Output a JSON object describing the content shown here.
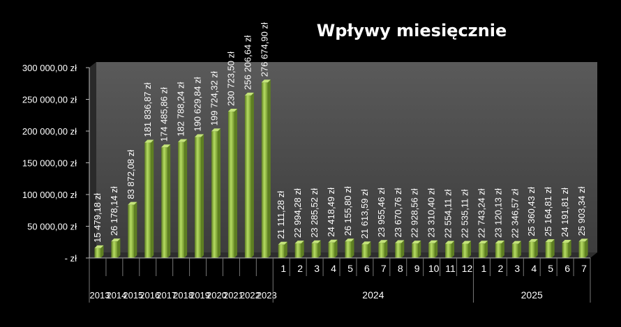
{
  "chart_data": {
    "type": "bar",
    "title": "Wpływy miesięcznie",
    "xlabel": "",
    "ylabel": "",
    "ylim": [
      0,
      300000
    ],
    "y_ticks": [
      "-  zł",
      "50 000,00 zł",
      "100 000,00 zł",
      "150 000,00 zł",
      "200 000,00 zł",
      "250 000,00 zł",
      "300 000,00 zł"
    ],
    "grid": false,
    "colors": {
      "bar": "#8cb83c",
      "bar_light": "#c4e47a",
      "bar_dark": "#5e7f22",
      "plot_back": "#4a4a4a",
      "plot_floor": "#2e2e2e"
    },
    "categories": [
      "2013",
      "2014",
      "2015",
      "2016",
      "2017",
      "2018",
      "2019",
      "2020",
      "2021",
      "2022",
      "2023",
      "1",
      "2",
      "3",
      "4",
      "5",
      "6",
      "7",
      "8",
      "9",
      "10",
      "11",
      "12",
      "1",
      "2",
      "3",
      "4",
      "5",
      "6",
      "7"
    ],
    "groups": [
      {
        "label": "2024",
        "start": 11,
        "count": 12
      },
      {
        "label": "2025",
        "start": 23,
        "count": 7
      }
    ],
    "values": [
      15479.18,
      26178.14,
      83872.08,
      181836.87,
      174485.86,
      182788.24,
      190629.84,
      199724.32,
      230723.5,
      256206.64,
      276674.9,
      21111.28,
      22994.28,
      23285.52,
      24418.49,
      26155.8,
      21613.59,
      23955.46,
      23670.76,
      22928.56,
      23310.4,
      22554.11,
      22535.11,
      22743.24,
      23120.13,
      22346.57,
      25360.43,
      25164.81,
      24191.81,
      25903.34
    ],
    "data_labels": [
      "15 479,18 zł",
      "26 178,14 zł",
      "83 872,08 zł",
      "181 836,87 zł",
      "174 485,86 zł",
      "182 788,24 zł",
      "190 629,84 zł",
      "199 724,32 zł",
      "230 723,50 zł",
      "256 206,64 zł",
      "276 674,90 zł",
      "21 111,28 zł",
      "22 994,28 zł",
      "23 285,52 zł",
      "24 418,49 zł",
      "26 155,80 zł",
      "21 613,59 zł",
      "23 955,46 zł",
      "23 670,76 zł",
      "22 928,56 zł",
      "23 310,40 zł",
      "22 554,11 zł",
      "22 535,11 zł",
      "22 743,24 zł",
      "23 120,13 zł",
      "22 346,57 zł",
      "25 360,43 zł",
      "25 164,81 zł",
      "24 191,81 zł",
      "25 903,34 zł"
    ]
  }
}
